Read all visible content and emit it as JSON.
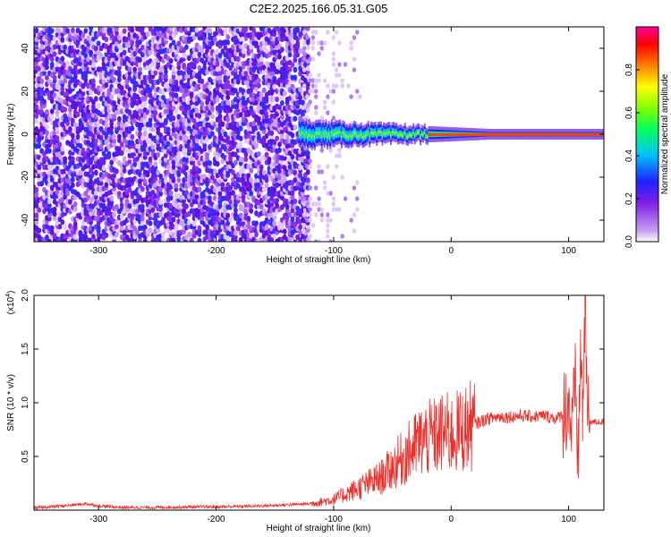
{
  "title": "C2E2.2025.166.05.31.G05",
  "chart_data": [
    {
      "type": "heatmap",
      "xlabel": "Height of straight line (km)",
      "ylabel": "Frequency (Hz)",
      "xlim": [
        -355,
        130
      ],
      "ylim": [
        -50,
        50
      ],
      "xticks": [
        -300,
        -200,
        -100,
        0,
        100
      ],
      "yticks": [
        -40,
        -20,
        0,
        20,
        40
      ],
      "colorbar": {
        "label": "Normalized spectral amplitude",
        "range": [
          0,
          1
        ],
        "ticks": [
          0.0,
          0.2,
          0.4,
          0.6,
          0.8
        ],
        "tick_labels": [
          "0.0",
          "0.2",
          "0.4",
          "0.6",
          "0.8"
        ],
        "colormap": [
          "#ffffff",
          "#c8a0f0",
          "#7f20e8",
          "#2020ff",
          "#00c0ff",
          "#00ff60",
          "#80ff00",
          "#ffff00",
          "#ff8000",
          "#ff0000",
          "#ff00a0"
        ]
      },
      "features": {
        "noise_region_x": [
          -355,
          -120
        ],
        "sparse_noise_region_x": [
          -125,
          -70
        ],
        "signal_start_x": -130,
        "signal_center_freq": 0,
        "signal_half_width": [
          5,
          1
        ]
      }
    },
    {
      "type": "line",
      "xlabel": "Height of straight line (km)",
      "ylabel": "SNR (10 * v/v)",
      "y_scale_label": "(x10",
      "y_scale_exp": "4",
      "y_scale_close": ")",
      "xlim": [
        -355,
        130
      ],
      "ylim": [
        0,
        2.0
      ],
      "xticks": [
        -300,
        -200,
        -100,
        0,
        100
      ],
      "yticks": [
        0.5,
        1.0,
        1.5,
        2.0
      ],
      "ytick_labels": [
        "0.5",
        "1.0",
        "1.5",
        "2.0"
      ],
      "series_color": "#e8302c",
      "series": [
        {
          "points": [
            [
              -355,
              0.02
            ],
            [
              -330,
              0.04
            ],
            [
              -310,
              0.06
            ],
            [
              -300,
              0.04
            ],
            [
              -280,
              0.025
            ],
            [
              -250,
              0.025
            ],
            [
              -220,
              0.03
            ],
            [
              -200,
              0.03
            ],
            [
              -180,
              0.035
            ],
            [
              -160,
              0.04
            ],
            [
              -140,
              0.05
            ],
            [
              -120,
              0.06
            ],
            [
              -100,
              0.1
            ],
            [
              -80,
              0.2
            ],
            [
              -60,
              0.3
            ],
            [
              -45,
              0.45
            ],
            [
              -35,
              0.55
            ],
            [
              -25,
              0.65
            ],
            [
              -15,
              0.68
            ],
            [
              -5,
              0.72
            ],
            [
              0,
              0.7
            ],
            [
              10,
              0.75
            ],
            [
              20,
              0.8
            ],
            [
              30,
              0.85
            ],
            [
              40,
              0.87
            ],
            [
              50,
              0.87
            ],
            [
              60,
              0.88
            ],
            [
              70,
              0.87
            ],
            [
              80,
              0.88
            ],
            [
              90,
              0.85
            ],
            [
              95,
              0.9
            ],
            [
              100,
              1.0
            ],
            [
              103,
              0.7
            ],
            [
              106,
              1.2
            ],
            [
              108,
              0.4
            ],
            [
              110,
              1.5
            ],
            [
              112,
              0.9
            ],
            [
              114,
              2.0
            ],
            [
              116,
              0.85
            ],
            [
              120,
              0.82
            ],
            [
              130,
              0.82
            ]
          ]
        }
      ]
    }
  ]
}
